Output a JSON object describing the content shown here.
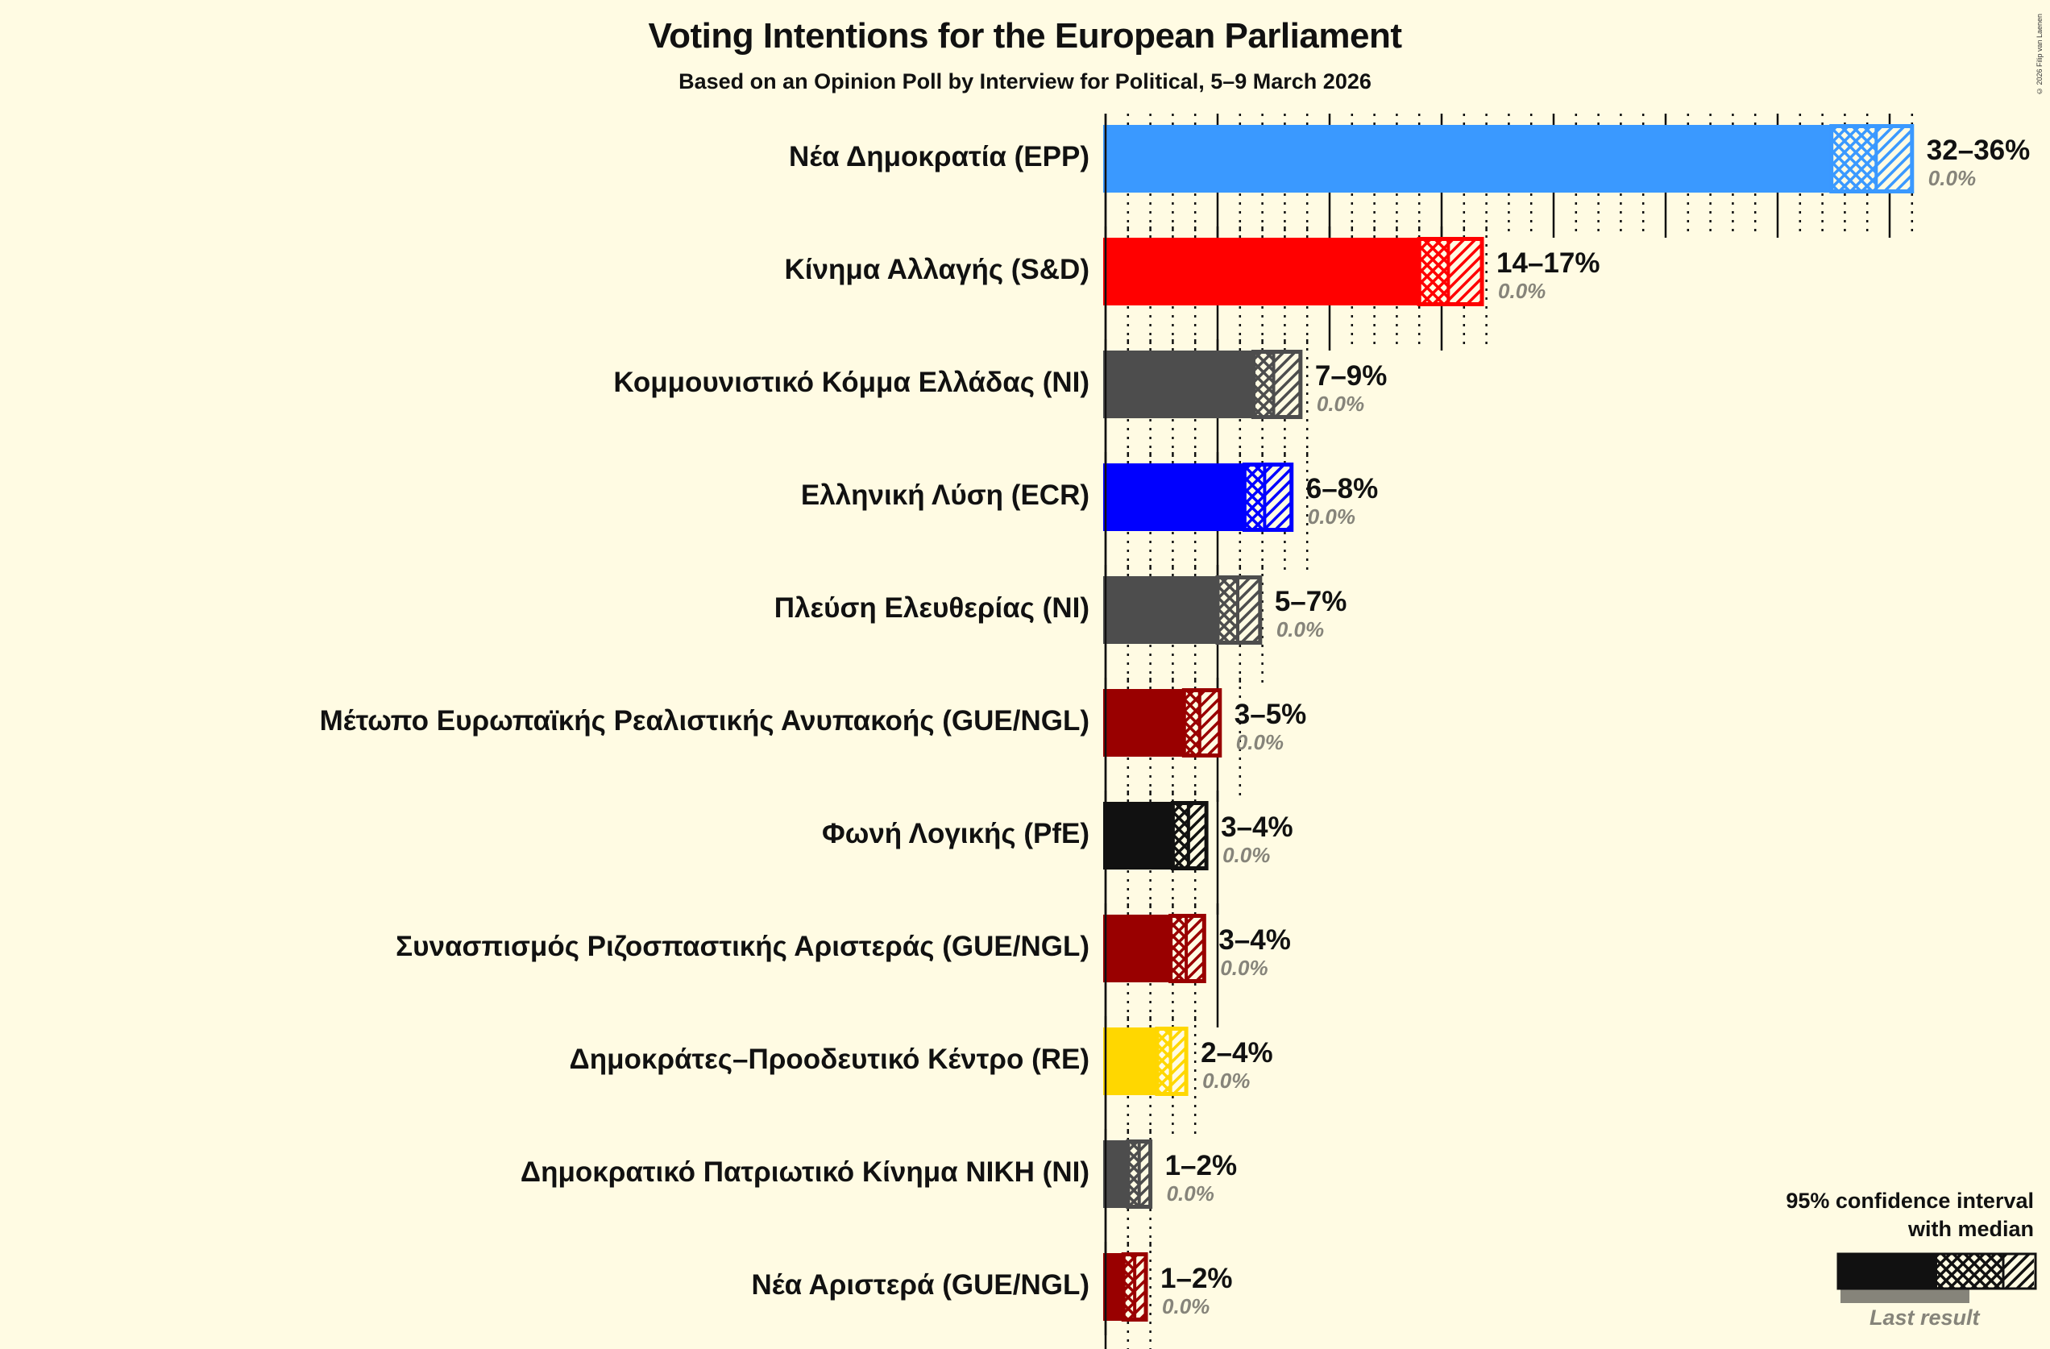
{
  "header": {
    "title": "Voting Intentions for the European Parliament",
    "subtitle": "Based on an Opinion Poll by Interview for Political, 5–9 March 2026",
    "copyright": "© 2026 Filip van Laenen"
  },
  "legend": {
    "title_line1": "95% confidence interval",
    "title_line2": "with median",
    "last_result": "Last result"
  },
  "chart_data": {
    "type": "bar",
    "orientation": "horizontal",
    "title": "Voting Intentions for the European Parliament",
    "subtitle": "Based on an Opinion Poll by Interview for Political, 5–9 March 2026",
    "xlabel": "",
    "ylabel": "",
    "xlim": [
      0,
      37
    ],
    "grid": {
      "major_step": 5,
      "minor_step": 1
    },
    "legend_position": "bottom-right",
    "categories": [
      "Νέα Δημοκρατία (EPP)",
      "Κίνημα Αλλαγής (S&D)",
      "Κομμουνιστικό Κόμμα Ελλάδας (NI)",
      "Ελληνική Λύση (ECR)",
      "Πλεύση Ελευθερίας (NI)",
      "Μέτωπο Ευρωπαϊκής Ρεαλιστικής Ανυπακοής (GUE/NGL)",
      "Φωνή Λογικής (PfE)",
      "Συνασπισμός Ριζοσπαστικής Αριστεράς (GUE/NGL)",
      "Δημοκράτες–Προοδευτικό Κέντρο (RE)",
      "Δημοκρατικό Πατριωτικό Κίνημα ΝΙΚΗ (NI)",
      "Νέα Αριστερά (GUE/NGL)"
    ],
    "series": [
      {
        "name": "CI low (%)",
        "values": [
          32.4,
          14.0,
          6.6,
          6.2,
          5.0,
          3.5,
          3.0,
          2.9,
          2.3,
          1.0,
          0.8
        ]
      },
      {
        "name": "Median (%)",
        "values": [
          34.4,
          15.3,
          7.5,
          7.1,
          5.9,
          4.2,
          3.7,
          3.6,
          2.9,
          1.5,
          1.3
        ]
      },
      {
        "name": "CI high (%)",
        "values": [
          36.0,
          16.8,
          8.7,
          8.3,
          6.9,
          5.1,
          4.5,
          4.4,
          3.6,
          2.0,
          1.8
        ]
      },
      {
        "name": "Last result (%)",
        "values": [
          0.0,
          0.0,
          0.0,
          0.0,
          0.0,
          0.0,
          0.0,
          0.0,
          0.0,
          0.0,
          0.0
        ]
      }
    ],
    "range_labels": [
      "32–36%",
      "14–17%",
      "7–9%",
      "6–8%",
      "5–7%",
      "3–5%",
      "3–4%",
      "3–4%",
      "2–4%",
      "1–2%",
      "1–2%"
    ],
    "last_result_labels": [
      "0.0%",
      "0.0%",
      "0.0%",
      "0.0%",
      "0.0%",
      "0.0%",
      "0.0%",
      "0.0%",
      "0.0%",
      "0.0%",
      "0.0%"
    ],
    "colors": [
      "#3a99ff",
      "#ff0000",
      "#4d4d4d",
      "#0000ff",
      "#4d4d4d",
      "#990000",
      "#111111",
      "#990000",
      "#ffd700",
      "#4d4d4d",
      "#990000"
    ]
  }
}
